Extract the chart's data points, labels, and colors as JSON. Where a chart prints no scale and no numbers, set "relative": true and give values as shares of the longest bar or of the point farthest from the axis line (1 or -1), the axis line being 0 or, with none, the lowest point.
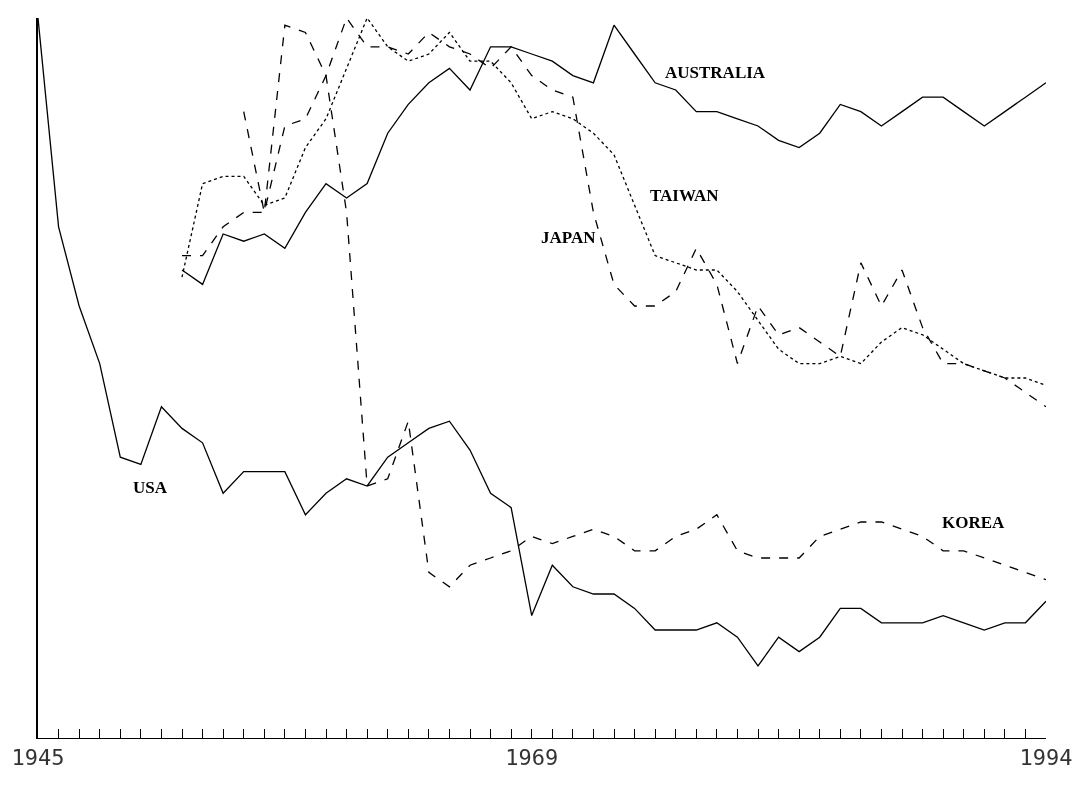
{
  "chart_data": {
    "type": "line",
    "relative": true,
    "tick_labels": "x",
    "legend": false,
    "marker": "none",
    "xlim": [
      1945,
      1994
    ],
    "xticks": [
      1945,
      {
        "value": 1946,
        "label": null
      },
      {
        "value": 1947,
        "label": null
      },
      {
        "value": 1948,
        "label": null
      },
      {
        "value": 1949,
        "label": null
      },
      {
        "value": 1950,
        "label": null
      },
      {
        "value": 1951,
        "label": null
      },
      {
        "value": 1952,
        "label": null
      },
      {
        "value": 1953,
        "label": null
      },
      {
        "value": 1954,
        "label": null
      },
      {
        "value": 1955,
        "label": null
      },
      {
        "value": 1956,
        "label": null
      },
      {
        "value": 1957,
        "label": null
      },
      {
        "value": 1958,
        "label": null
      },
      {
        "value": 1959,
        "label": null
      },
      {
        "value": 1960,
        "label": null
      },
      {
        "value": 1961,
        "label": null
      },
      {
        "value": 1962,
        "label": null
      },
      {
        "value": 1963,
        "label": null
      },
      {
        "value": 1964,
        "label": null
      },
      {
        "value": 1965,
        "label": null
      },
      {
        "value": 1966,
        "label": null
      },
      {
        "value": 1967,
        "label": null
      },
      {
        "value": 1968,
        "label": null
      },
      1969,
      {
        "value": 1970,
        "label": null
      },
      {
        "value": 1971,
        "label": null
      },
      {
        "value": 1972,
        "label": null
      },
      {
        "value": 1973,
        "label": null
      },
      {
        "value": 1974,
        "label": null
      },
      {
        "value": 1975,
        "label": null
      },
      {
        "value": 1976,
        "label": null
      },
      {
        "value": 1977,
        "label": null
      },
      {
        "value": 1978,
        "label": null
      },
      {
        "value": 1979,
        "label": null
      },
      {
        "value": 1980,
        "label": null
      },
      {
        "value": 1981,
        "label": null
      },
      {
        "value": 1982,
        "label": null
      },
      {
        "value": 1983,
        "label": null
      },
      {
        "value": 1984,
        "label": null
      },
      {
        "value": 1985,
        "label": null
      },
      {
        "value": 1986,
        "label": null
      },
      {
        "value": 1987,
        "label": null
      },
      {
        "value": 1988,
        "label": null
      },
      {
        "value": 1989,
        "label": null
      },
      {
        "value": 1990,
        "label": null
      },
      {
        "value": 1991,
        "label": null
      },
      {
        "value": 1992,
        "label": null
      },
      {
        "value": 1993,
        "label": null
      },
      1994
    ],
    "series": [
      {
        "name": "USA",
        "color": "#000000",
        "line_style": "solid",
        "x": [
          1945,
          1946,
          1947,
          1948,
          1949,
          1950,
          1951,
          1952,
          1953,
          1954,
          1955,
          1956,
          1957,
          1958,
          1959,
          1960,
          1961,
          1962,
          1963,
          1964,
          1965,
          1966,
          1967,
          1968,
          1969,
          1970,
          1971,
          1972,
          1973,
          1974,
          1975,
          1976,
          1977,
          1978,
          1979,
          1980,
          1981,
          1982,
          1983,
          1984,
          1985,
          1986,
          1987,
          1988,
          1989,
          1990,
          1991,
          1992,
          1993,
          1994
        ],
        "values": [
          1.0,
          0.71,
          0.6,
          0.52,
          0.39,
          0.38,
          0.46,
          0.43,
          0.41,
          0.34,
          0.37,
          0.37,
          0.37,
          0.31,
          0.34,
          0.36,
          0.35,
          0.39,
          0.41,
          0.43,
          0.44,
          0.4,
          0.34,
          0.32,
          0.17,
          0.24,
          0.21,
          0.2,
          0.2,
          0.18,
          0.15,
          0.15,
          0.15,
          0.16,
          0.14,
          0.1,
          0.14,
          0.12,
          0.14,
          0.18,
          0.18,
          0.16,
          0.16,
          0.16,
          0.17,
          0.16,
          0.15,
          0.16,
          0.16,
          0.19
        ]
      },
      {
        "name": "AUSTRALIA",
        "color": "#000000",
        "line_style": "solid",
        "x": [
          1952,
          1953,
          1954,
          1955,
          1956,
          1957,
          1958,
          1959,
          1960,
          1961,
          1962,
          1963,
          1964,
          1965,
          1966,
          1967,
          1968,
          1969,
          1970,
          1971,
          1972,
          1973,
          1974,
          1975,
          1976,
          1977,
          1978,
          1979,
          1980,
          1981,
          1982,
          1983,
          1984,
          1985,
          1986,
          1987,
          1988,
          1989,
          1990,
          1991,
          1992,
          1993,
          1994
        ],
        "values": [
          0.65,
          0.63,
          0.7,
          0.69,
          0.7,
          0.68,
          0.73,
          0.77,
          0.75,
          0.77,
          0.84,
          0.88,
          0.91,
          0.93,
          0.9,
          0.96,
          0.96,
          0.95,
          0.94,
          0.92,
          0.91,
          0.99,
          0.95,
          0.91,
          0.9,
          0.87,
          0.87,
          0.86,
          0.85,
          0.83,
          0.82,
          0.84,
          0.88,
          0.87,
          0.85,
          0.87,
          0.89,
          0.89,
          0.87,
          0.85,
          0.87,
          0.89,
          0.91
        ]
      },
      {
        "name": "TAIWAN",
        "color": "#000000",
        "line_style": "dotted",
        "x": [
          1952,
          1953,
          1954,
          1955,
          1956,
          1957,
          1958,
          1959,
          1960,
          1961,
          1962,
          1963,
          1964,
          1965,
          1966,
          1967,
          1968,
          1969,
          1970,
          1971,
          1972,
          1973,
          1974,
          1975,
          1976,
          1977,
          1978,
          1979,
          1980,
          1981,
          1982,
          1983,
          1984,
          1985,
          1986,
          1987,
          1988,
          1989,
          1990,
          1991,
          1992,
          1993,
          1994
        ],
        "values": [
          0.64,
          0.77,
          0.78,
          0.78,
          0.74,
          0.75,
          0.82,
          0.86,
          0.93,
          1.0,
          0.96,
          0.94,
          0.95,
          0.98,
          0.94,
          0.94,
          0.91,
          0.86,
          0.87,
          0.86,
          0.84,
          0.81,
          0.74,
          0.67,
          0.66,
          0.65,
          0.65,
          0.62,
          0.58,
          0.54,
          0.52,
          0.52,
          0.53,
          0.52,
          0.55,
          0.57,
          0.56,
          0.54,
          0.52,
          0.51,
          0.5,
          0.5,
          0.49
        ]
      },
      {
        "name": "JAPAN",
        "color": "#000000",
        "line_style": "dashed",
        "x": [
          1952,
          1953,
          1954,
          1955,
          1956,
          1957,
          1958,
          1959,
          1960,
          1961,
          1962,
          1963,
          1964,
          1965,
          1966,
          1967,
          1968,
          1969,
          1970,
          1971,
          1972,
          1973,
          1974,
          1975,
          1976,
          1977,
          1978,
          1979,
          1980,
          1981,
          1982,
          1983,
          1984,
          1985,
          1986,
          1987,
          1988,
          1989,
          1990,
          1991,
          1992,
          1993,
          1994
        ],
        "values": [
          0.67,
          0.67,
          0.71,
          0.73,
          0.73,
          0.85,
          0.86,
          0.92,
          1.0,
          0.96,
          0.96,
          0.95,
          0.98,
          0.96,
          0.95,
          0.93,
          0.96,
          0.92,
          0.9,
          0.89,
          0.73,
          0.63,
          0.6,
          0.6,
          0.62,
          0.68,
          0.63,
          0.52,
          0.6,
          0.56,
          0.57,
          0.55,
          0.53,
          0.66,
          0.6,
          0.65,
          0.57,
          0.52,
          0.52,
          0.51,
          0.5,
          0.48,
          0.46
        ]
      },
      {
        "name": "KOREA",
        "color": "#000000",
        "line_style": "dashed",
        "x": [
          1955,
          1956,
          1957,
          1958,
          1959,
          1960,
          1961,
          1962,
          1963,
          1964,
          1965,
          1966,
          1967,
          1968,
          1969,
          1970,
          1971,
          1972,
          1973,
          1974,
          1975,
          1976,
          1977,
          1978,
          1979,
          1980,
          1981,
          1982,
          1983,
          1984,
          1985,
          1986,
          1987,
          1988,
          1989,
          1990,
          1991,
          1992,
          1993,
          1994
        ],
        "values": [
          0.87,
          0.73,
          0.99,
          0.98,
          0.92,
          0.73,
          0.35,
          0.36,
          0.44,
          0.23,
          0.21,
          0.24,
          0.25,
          0.26,
          0.28,
          0.27,
          0.28,
          0.29,
          0.28,
          0.26,
          0.26,
          0.28,
          0.29,
          0.31,
          0.26,
          0.25,
          0.25,
          0.25,
          0.28,
          0.29,
          0.3,
          0.3,
          0.29,
          0.28,
          0.26,
          0.26,
          0.25,
          0.24,
          0.23,
          0.22
        ]
      }
    ]
  }
}
